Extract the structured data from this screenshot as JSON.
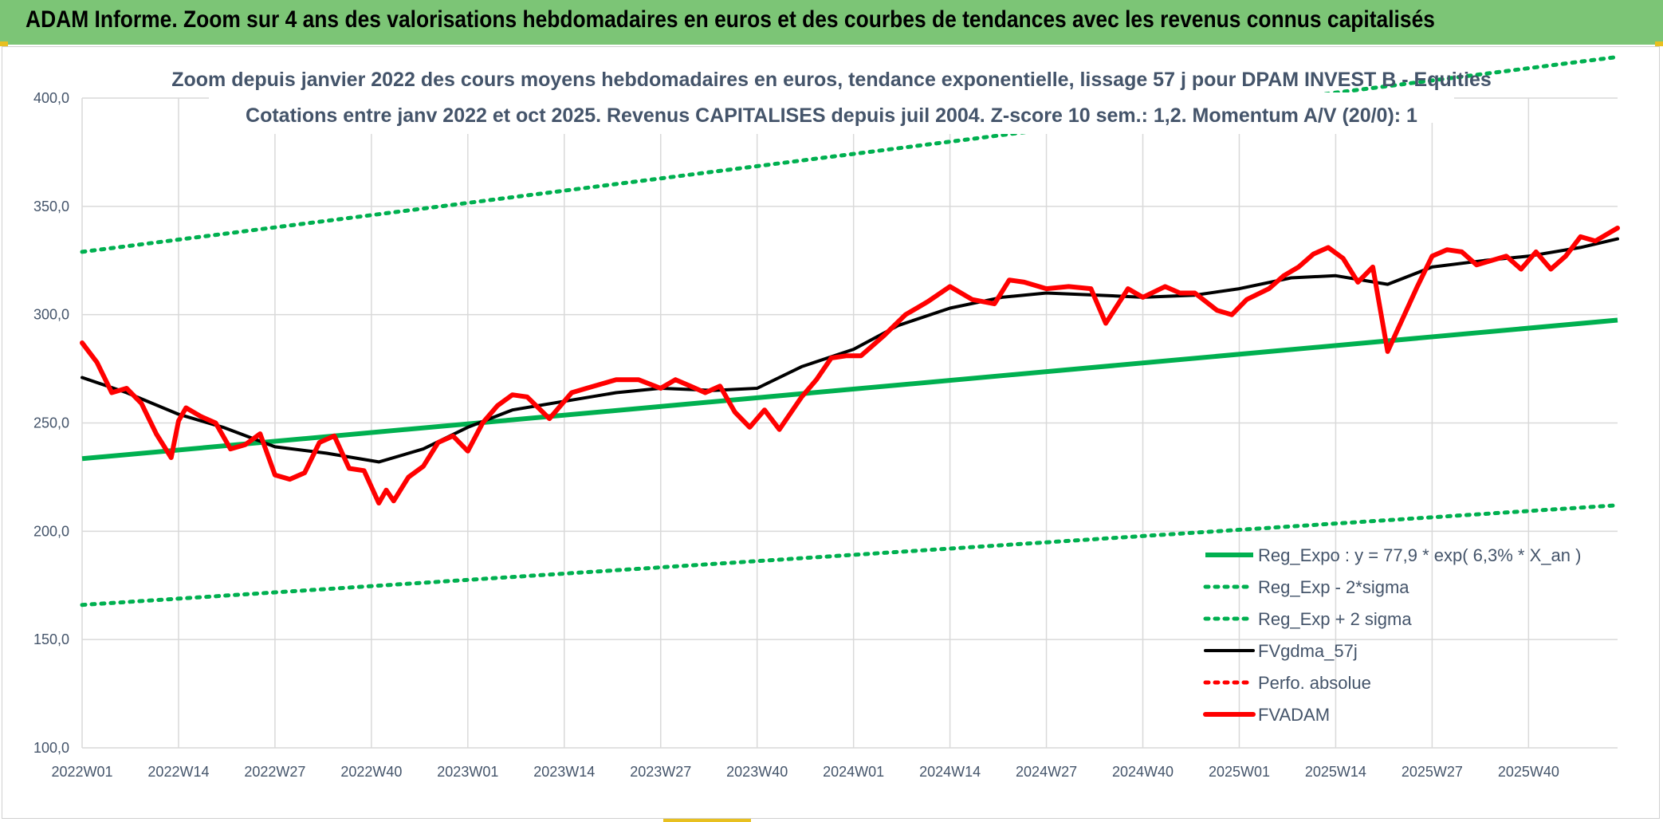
{
  "header": {
    "title": "ADAM Informe. Zoom sur 4 ans des valorisations hebdomadaires en euros et des courbes de tendances avec les revenus connus capitalisés"
  },
  "chart_data": {
    "type": "line",
    "title": "Zoom depuis janvier 2022 des cours moyens hebdomadaires en euros, tendance exponentielle, lissage 57 j pour DPAM INVEST B - Equities",
    "subtitle": "Cotations entre janv 2022 et oct 2025. Revenus CAPITALISES depuis juil 2004. Z-score 10 sem.: 1,2. Momentum A/V (20/0): 1",
    "xlabel": "",
    "ylabel": "",
    "ylim": [
      100,
      400
    ],
    "y_ticks": [
      "100,0",
      "150,0",
      "200,0",
      "250,0",
      "300,0",
      "350,0",
      "400,0"
    ],
    "x_ticks": [
      "2022W01",
      "2022W14",
      "2022W27",
      "2022W40",
      "2023W01",
      "2023W14",
      "2023W27",
      "2023W40",
      "2024W01",
      "2024W14",
      "2024W27",
      "2024W40",
      "2025W01",
      "2025W14",
      "2025W27",
      "2025W40"
    ],
    "grid": true,
    "legend_position": "bottom-right",
    "series": [
      {
        "name": "Reg_Expo : y = 77,9 * exp( 6,3% *  X_an )",
        "color": "#00b050",
        "style": "solid",
        "x": [
          0,
          207
        ],
        "values": [
          233.5,
          297.5
        ]
      },
      {
        "name": "Reg_Exp - 2*sigma",
        "color": "#00b050",
        "style": "dotted",
        "x": [
          0,
          207
        ],
        "values": [
          166,
          212
        ]
      },
      {
        "name": "Reg_Exp + 2 sigma",
        "color": "#00b050",
        "style": "dotted",
        "x": [
          0,
          207
        ],
        "values": [
          329,
          419
        ]
      },
      {
        "name": "FVgdma_57j",
        "color": "#000000",
        "style": "solid",
        "x": [
          0,
          6,
          13,
          19,
          26,
          33,
          40,
          46,
          52,
          58,
          65,
          72,
          78,
          85,
          91,
          97,
          104,
          110,
          117,
          124,
          130,
          137,
          143,
          150,
          156,
          163,
          169,
          176,
          182,
          189,
          195,
          202,
          207
        ],
        "values": [
          271,
          264,
          254,
          248,
          239,
          236,
          232,
          238,
          248,
          256,
          260,
          264,
          266,
          265,
          266,
          276,
          284,
          295,
          303,
          308,
          310,
          309,
          308,
          309,
          312,
          317,
          318,
          314,
          322,
          325,
          327,
          331,
          335
        ]
      },
      {
        "name": "Perfo. absolue",
        "color": "#ff0000",
        "style": "dotted",
        "x": [],
        "values": []
      },
      {
        "name": "FVADAM",
        "color": "#ff0000",
        "style": "solid",
        "x": [
          0,
          2,
          4,
          6,
          8,
          10,
          12,
          13,
          14,
          16,
          18,
          20,
          22,
          24,
          26,
          28,
          30,
          32,
          34,
          36,
          38,
          40,
          41,
          42,
          44,
          46,
          48,
          50,
          52,
          54,
          56,
          58,
          60,
          63,
          66,
          68,
          70,
          72,
          75,
          78,
          80,
          82,
          84,
          86,
          88,
          90,
          92,
          94,
          95,
          97,
          99,
          101,
          103,
          105,
          108,
          111,
          114,
          117,
          120,
          123,
          125,
          127,
          130,
          133,
          136,
          138,
          141,
          143,
          146,
          148,
          150,
          153,
          155,
          157,
          160,
          162,
          164,
          166,
          168,
          170,
          172,
          174,
          176,
          178,
          180,
          182,
          184,
          186,
          188,
          190,
          192,
          194,
          196,
          198,
          200,
          202,
          204,
          207
        ],
        "values": [
          287,
          278,
          264,
          266,
          259,
          245,
          234,
          251,
          257,
          253,
          250,
          238,
          240,
          245,
          226,
          224,
          227,
          241,
          244,
          229,
          228,
          213,
          219,
          214,
          225,
          230,
          241,
          244,
          237,
          250,
          258,
          263,
          262,
          252,
          264,
          266,
          268,
          270,
          270,
          266,
          270,
          267,
          264,
          267,
          255,
          248,
          256,
          247,
          252,
          262,
          270,
          280,
          281,
          281,
          290,
          300,
          306,
          313,
          307,
          305,
          316,
          315,
          312,
          313,
          312,
          296,
          312,
          308,
          313,
          310,
          310,
          302,
          300,
          307,
          312,
          318,
          322,
          328,
          331,
          326,
          315,
          322,
          283,
          298,
          313,
          327,
          330,
          329,
          323,
          325,
          327,
          321,
          329,
          321,
          327,
          336,
          334,
          340
        ]
      }
    ]
  }
}
